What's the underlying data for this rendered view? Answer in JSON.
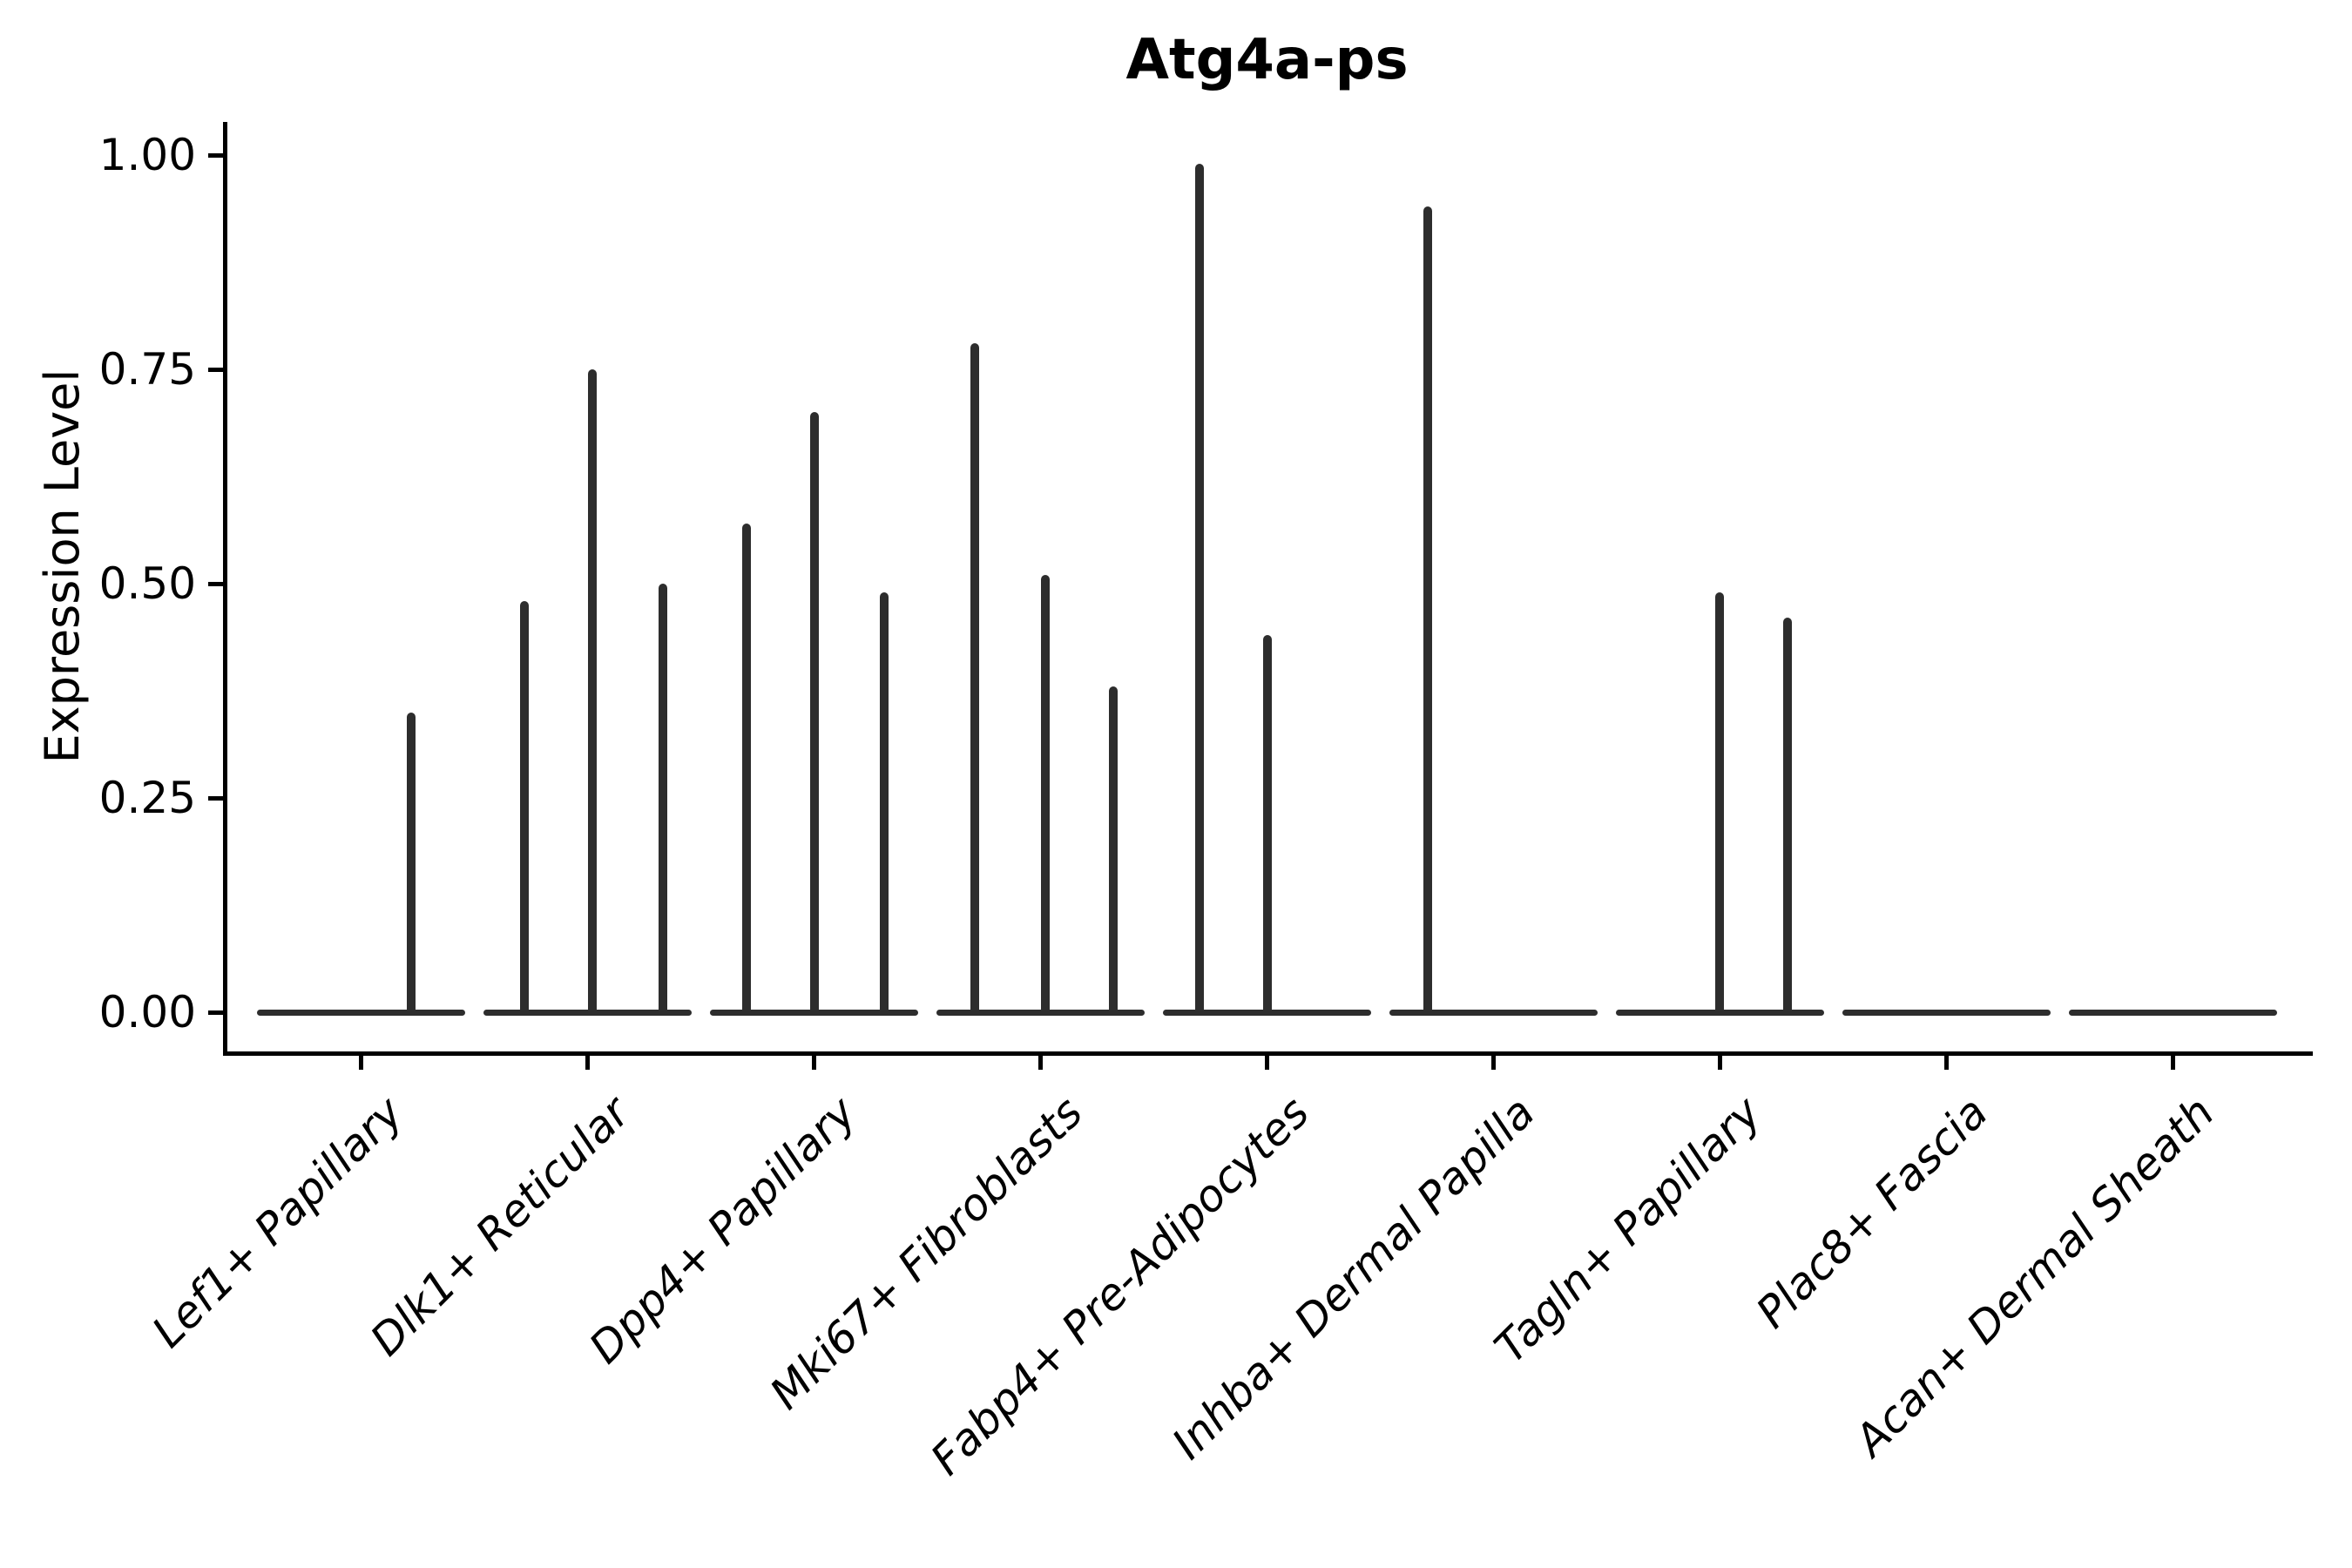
{
  "title": "Atg4a-ps",
  "ylabel": "Expression Level",
  "chart_data": {
    "type": "violin",
    "title": "Atg4a-ps",
    "xlabel": "",
    "ylabel": "Expression Level",
    "ylim": [
      -0.05,
      1.04
    ],
    "grid": false,
    "legend": null,
    "yticks": [
      0.0,
      0.25,
      0.5,
      0.75,
      1.0
    ],
    "ytick_labels": [
      "0.00",
      "0.25",
      "0.50",
      "0.75",
      "1.00"
    ],
    "categories": [
      "Lef1+ Papillary",
      "Dlk1+ Reticular",
      "Dpp4+ Papillary",
      "Mki67+ Fibroblasts",
      "Fabp4+ Pre-Adipocytes",
      "Inhba+ Dermal Papilla",
      "Tagln+ Papillary",
      "Plac8+ Fascia",
      "Acan+ Dermal Sheath"
    ],
    "violins": [
      {
        "category": "Lef1+ Papillary",
        "zero_baseline": true,
        "spikes": [
          {
            "value": 0.35,
            "offset": 0.22
          }
        ]
      },
      {
        "category": "Dlk1+ Reticular",
        "zero_baseline": true,
        "spikes": [
          {
            "value": 0.48,
            "offset": -0.28
          },
          {
            "value": 0.75,
            "offset": 0.02
          },
          {
            "value": 0.5,
            "offset": 0.33
          }
        ]
      },
      {
        "category": "Dpp4+ Papillary",
        "zero_baseline": true,
        "spikes": [
          {
            "value": 0.57,
            "offset": -0.3
          },
          {
            "value": 0.7,
            "offset": 0.0
          },
          {
            "value": 0.49,
            "offset": 0.31
          }
        ]
      },
      {
        "category": "Mki67+ Fibroblasts",
        "zero_baseline": true,
        "spikes": [
          {
            "value": 0.78,
            "offset": -0.29
          },
          {
            "value": 0.51,
            "offset": 0.02
          },
          {
            "value": 0.38,
            "offset": 0.32
          }
        ]
      },
      {
        "category": "Fabp4+ Pre-Adipocytes",
        "zero_baseline": true,
        "spikes": [
          {
            "value": 0.99,
            "offset": -0.3
          },
          {
            "value": 0.44,
            "offset": 0.0
          }
        ]
      },
      {
        "category": "Inhba+ Dermal Papilla",
        "zero_baseline": true,
        "spikes": [
          {
            "value": 0.94,
            "offset": -0.29
          }
        ]
      },
      {
        "category": "Tagln+ Papillary",
        "zero_baseline": true,
        "spikes": [
          {
            "value": 0.49,
            "offset": 0.0
          },
          {
            "value": 0.46,
            "offset": 0.3
          }
        ]
      },
      {
        "category": "Plac8+ Fascia",
        "zero_baseline": true,
        "spikes": []
      },
      {
        "category": "Acan+ Dermal Sheath",
        "zero_baseline": true,
        "spikes": []
      }
    ],
    "colors": {
      "violin": "#2d2d2d",
      "axis": "#000000",
      "background": "#ffffff"
    }
  }
}
